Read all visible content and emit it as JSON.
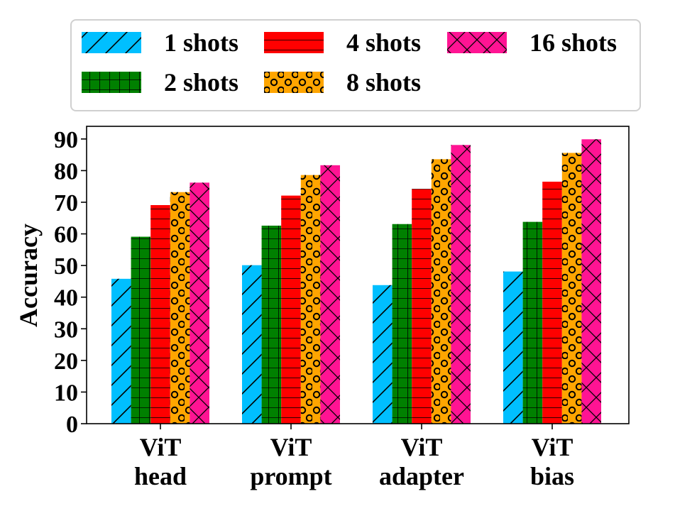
{
  "chart_data": {
    "type": "bar",
    "title": "",
    "xlabel": "",
    "ylabel": "Accuracy",
    "ylim": [
      0,
      94
    ],
    "yticks": [
      "0",
      "10",
      "20",
      "30",
      "40",
      "50",
      "60",
      "70",
      "80",
      "90"
    ],
    "categories": [
      [
        "ViT",
        "head"
      ],
      [
        "ViT",
        "prompt"
      ],
      [
        "ViT",
        "adapter"
      ],
      [
        "ViT",
        "bias"
      ]
    ],
    "grid": false,
    "legend_position": "top",
    "series": [
      {
        "name": "1 shots",
        "color": "#00bfff",
        "hatch": "diagonal",
        "values": [
          45.8,
          50.1,
          43.8,
          48.1
        ]
      },
      {
        "name": "2 shots",
        "color": "#008000",
        "hatch": "grid",
        "values": [
          59.1,
          62.6,
          63.1,
          63.8
        ]
      },
      {
        "name": "4 shots",
        "color": "#ff0000",
        "hatch": "horizontal",
        "values": [
          69.1,
          72.1,
          74.2,
          76.5
        ]
      },
      {
        "name": "8 shots",
        "color": "#ffa500",
        "hatch": "circles",
        "values": [
          73.2,
          78.6,
          83.6,
          85.6
        ]
      },
      {
        "name": "16 shots",
        "color": "#ff1493",
        "hatch": "cross",
        "values": [
          76.2,
          81.7,
          88.1,
          89.9
        ]
      }
    ]
  }
}
